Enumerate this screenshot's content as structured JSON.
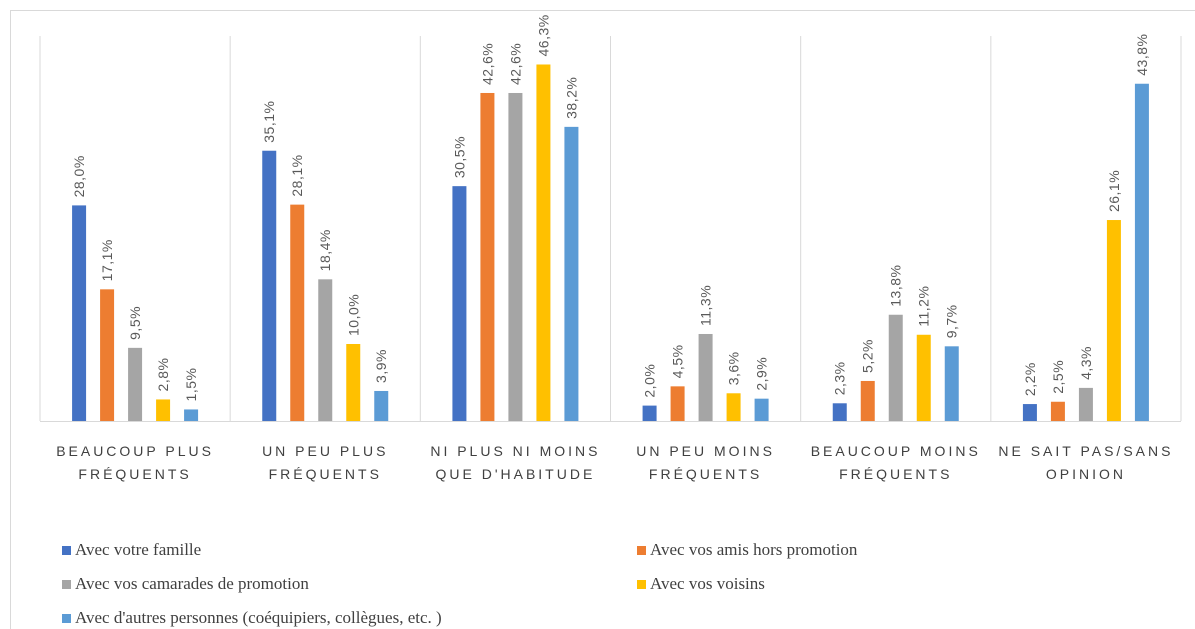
{
  "chart_data": {
    "type": "bar",
    "categories": [
      "BEAUCOUP PLUS FRÉQUENTS",
      "UN PEU PLUS FRÉQUENTS",
      "NI PLUS NI MOINS QUE D'HABITUDE",
      "UN PEU MOINS FRÉQUENTS",
      "BEAUCOUP MOINS FRÉQUENTS",
      "NE SAIT PAS/SANS OPINION"
    ],
    "series": [
      {
        "name": "Avec votre famille",
        "color": "#4472c4",
        "values": [
          28.0,
          35.1,
          30.5,
          2.0,
          2.3,
          2.2
        ],
        "value_labels": [
          "28,0%",
          "35,1%",
          "30,5%",
          "2,0%",
          "2,3%",
          "2,2%"
        ]
      },
      {
        "name": "Avec vos amis hors promotion",
        "color": "#ed7d31",
        "values": [
          17.1,
          28.1,
          42.6,
          4.5,
          5.2,
          2.5
        ],
        "value_labels": [
          "17,1%",
          "28,1%",
          "42,6%",
          "4,5%",
          "5,2%",
          "2,5%"
        ]
      },
      {
        "name": "Avec vos camarades de promotion",
        "color": "#a5a5a5",
        "values": [
          9.5,
          18.4,
          42.6,
          11.3,
          13.8,
          4.3
        ],
        "value_labels": [
          "9,5%",
          "18,4%",
          "42,6%",
          "11,3%",
          "13,8%",
          "4,3%"
        ]
      },
      {
        "name": "Avec vos voisins",
        "color": "#ffc000",
        "values": [
          2.8,
          10.0,
          46.3,
          3.6,
          11.2,
          26.1
        ],
        "value_labels": [
          "2,8%",
          "10,0%",
          "46,3%",
          "3,6%",
          "11,2%",
          "26,1%"
        ]
      },
      {
        "name": "Avec d'autres personnes (coéquipiers, collègues, etc. )",
        "color": "#5b9bd5",
        "values": [
          1.5,
          3.9,
          38.2,
          2.9,
          9.7,
          43.8
        ],
        "value_labels": [
          "1,5%",
          "3,9%",
          "38,2%",
          "2,9%",
          "9,7%",
          "43,8%"
        ]
      }
    ],
    "ylim": [
      0,
      50
    ]
  }
}
